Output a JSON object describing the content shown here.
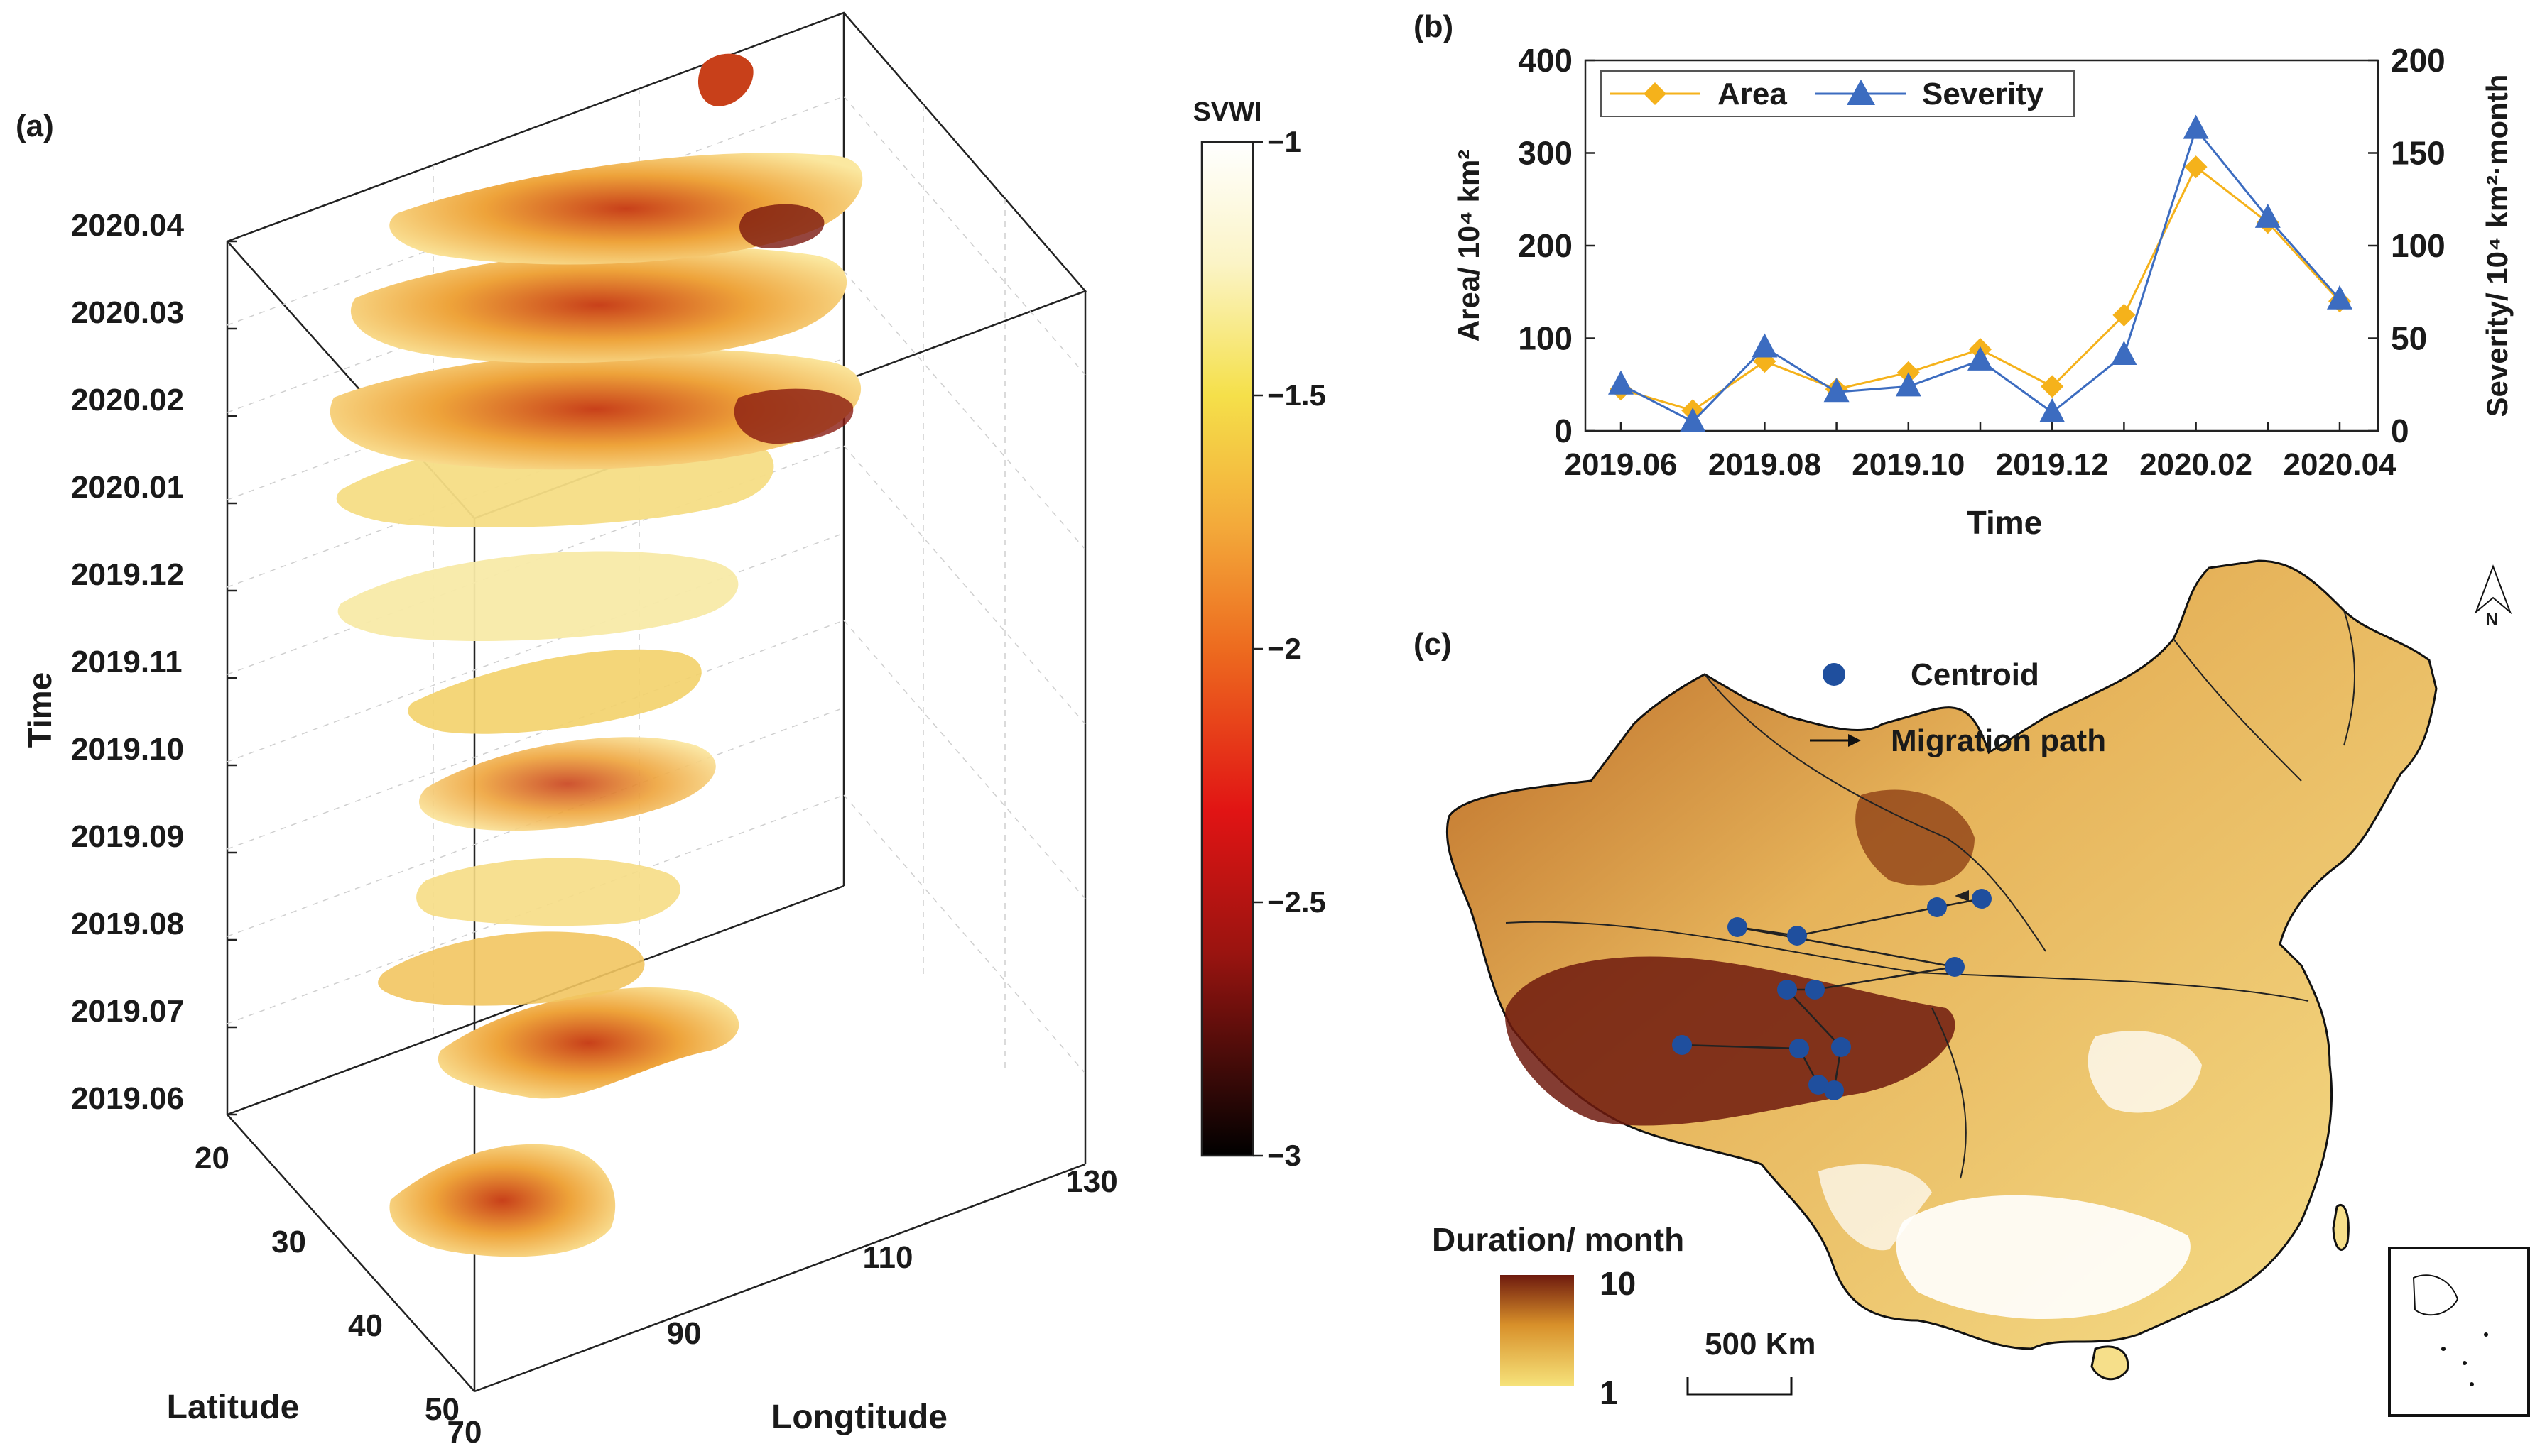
{
  "figure": {
    "panel_a_label": "(a)",
    "panel_b_label": "(b)",
    "panel_c_label": "(c)"
  },
  "colors": {
    "area": "#f5b21b",
    "severity": "#3c6cc0",
    "centroid": "#1f4f9e",
    "dur_low": "#f6e27a",
    "dur_mid": "#d8902a",
    "dur_high": "#6e1a0e"
  },
  "chart_data": [
    {
      "type": "3d-stack",
      "panel": "a",
      "zlabel": "Time",
      "time_ticks": [
        "2020.04",
        "2020.03",
        "2020.02",
        "2020.01",
        "2019.12",
        "2019.11",
        "2019.10",
        "2019.09",
        "2019.08",
        "2019.07",
        "2019.06"
      ],
      "xlabel": "Latitude",
      "lat_ticks": [
        "20",
        "30",
        "40",
        "50"
      ],
      "ylabel": "Longtitude",
      "lon_ticks": [
        "70",
        "90",
        "110",
        "130"
      ],
      "colorbar": {
        "title": "SVWI",
        "ticks": [
          "−1",
          "−1.5",
          "−2",
          "−2.5",
          "−3"
        ],
        "range": [
          -3,
          -1
        ]
      }
    },
    {
      "type": "line",
      "panel": "b",
      "categories": [
        "2019.06",
        "2019.07",
        "2019.08",
        "2019.09",
        "2019.10",
        "2019.11",
        "2019.12",
        "2020.01",
        "2020.02",
        "2020.03",
        "2020.04"
      ],
      "xtick_labels": [
        "2019.06",
        "2019.08",
        "2019.10",
        "2019.12",
        "2020.02",
        "2020.04"
      ],
      "xlabel": "Time",
      "ylabel_left": "Area/ 10⁴ km²",
      "ylabel_right": "Severity/ 10⁴ km²·month",
      "ylim_left": [
        0,
        400
      ],
      "ylim_right": [
        0,
        200
      ],
      "yticks_left": [
        "0",
        "100",
        "200",
        "300",
        "400"
      ],
      "yticks_right": [
        "0",
        "50",
        "100",
        "150",
        "200"
      ],
      "series": [
        {
          "name": "Area",
          "axis": "left",
          "marker": "diamond",
          "values": [
            45,
            22,
            75,
            45,
            63,
            88,
            48,
            125,
            285,
            225,
            140
          ]
        },
        {
          "name": "Severity",
          "axis": "right",
          "marker": "triangle",
          "values": [
            25,
            5,
            45,
            21,
            24,
            38,
            10,
            41,
            163,
            115,
            71
          ]
        }
      ]
    },
    {
      "type": "map",
      "panel": "c",
      "legend_centroid": "Centroid",
      "legend_migration": "Migration path",
      "colorbar_title": "Duration/ month",
      "colorbar_max": "10",
      "colorbar_min": "1",
      "scale_bar": "500 Km",
      "north": "N"
    }
  ]
}
